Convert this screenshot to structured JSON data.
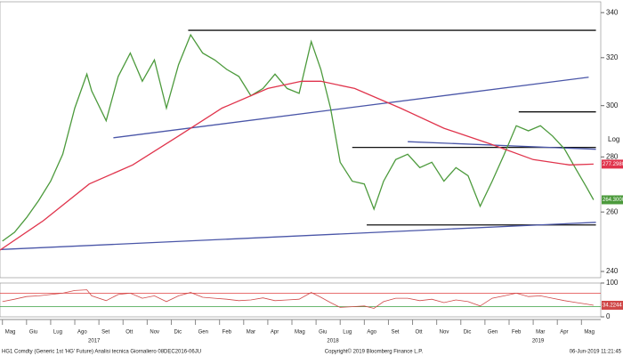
{
  "chart_data": [
    {
      "type": "line",
      "y_scale": "log",
      "y_axis_label": "Log",
      "xlim": [
        -0.1,
        24.8
      ],
      "ylim": [
        238,
        345
      ],
      "yticks": [
        240,
        260,
        280,
        300,
        320,
        340
      ],
      "xticks": [
        {
          "value": 0,
          "label": "Mag"
        },
        {
          "value": 1,
          "label": "Giu"
        },
        {
          "value": 2,
          "label": "Lug"
        },
        {
          "value": 3,
          "label": "Ago"
        },
        {
          "value": 4,
          "label": "Set"
        },
        {
          "value": 5,
          "label": "Ott"
        },
        {
          "value": 6,
          "label": "Nov"
        },
        {
          "value": 7,
          "label": "Dic"
        },
        {
          "value": 8,
          "label": "Gen"
        },
        {
          "value": 9,
          "label": "Feb"
        },
        {
          "value": 10,
          "label": "Mar"
        },
        {
          "value": 11,
          "label": "Apr"
        },
        {
          "value": 12,
          "label": "Mag"
        },
        {
          "value": 13,
          "label": "Giu"
        },
        {
          "value": 14,
          "label": "Lug"
        },
        {
          "value": 15,
          "label": "Ago"
        },
        {
          "value": 16,
          "label": "Set"
        },
        {
          "value": 17,
          "label": "Ott"
        },
        {
          "value": 18,
          "label": "Nov"
        },
        {
          "value": 19,
          "label": "Dic"
        },
        {
          "value": 20,
          "label": "Gen"
        },
        {
          "value": 21,
          "label": "Feb"
        },
        {
          "value": 22,
          "label": "Mar"
        },
        {
          "value": 23,
          "label": "Apr"
        },
        {
          "value": 24,
          "label": "Mag"
        }
      ],
      "year_labels": [
        {
          "value": 3.8,
          "label": "2017"
        },
        {
          "value": 13.7,
          "label": "2018"
        },
        {
          "value": 22.2,
          "label": "2019"
        }
      ],
      "series": [
        {
          "color": "#4c9a3c",
          "x": [
            0,
            0.5,
            1,
            1.5,
            2,
            2.5,
            3,
            3.5,
            3.7,
            4.3,
            4.8,
            5.3,
            5.8,
            6.3,
            6.8,
            7.3,
            7.8,
            8.3,
            8.8,
            9.3,
            9.8,
            10.3,
            10.8,
            11.3,
            11.8,
            12.3,
            12.8,
            13.2,
            13.6,
            14,
            14.5,
            15,
            15.4,
            15.8,
            16.3,
            16.8,
            17.3,
            17.8,
            18.3,
            18.8,
            19.3,
            19.8,
            20.3,
            20.8,
            21.3,
            21.8,
            22.3,
            22.8,
            23.3,
            23.8,
            24.2,
            24.5
          ],
          "values": [
            250,
            253,
            258,
            264,
            271,
            281,
            299,
            313,
            306,
            294,
            312,
            322,
            310,
            319,
            299,
            317,
            330,
            322,
            319,
            315,
            312,
            304,
            307,
            313,
            307,
            305,
            327,
            315,
            299,
            278,
            271,
            270,
            261,
            271,
            279,
            281,
            276,
            278,
            271,
            276,
            273,
            262,
            271,
            281,
            292,
            290,
            292,
            288,
            283,
            275,
            269,
            264.3
          ],
          "end_label": {
            "value": 264.3,
            "label": "264.3000"
          }
        },
        {
          "color": "#e0344c",
          "x": [
            -0.1,
            1.7,
            3.6,
            5.4,
            7.3,
            9.1,
            11.0,
            12.4,
            13.2,
            14.6,
            16.5,
            18.3,
            20.2,
            22.0,
            23.5,
            24.5
          ],
          "values": [
            247,
            257,
            270,
            277,
            288,
            299,
            307,
            310,
            310,
            307,
            299,
            291,
            285,
            279,
            277,
            277.298
          ],
          "end_label": {
            "value": 277.298,
            "label": "277.2980"
          }
        }
      ],
      "lines": [
        {
          "color": "#111111",
          "x": [
            7.7,
            24.6
          ],
          "values": [
            332,
            332
          ]
        },
        {
          "color": "#111111",
          "x": [
            14.5,
            24.6
          ],
          "values": [
            283.6,
            283.6
          ]
        },
        {
          "color": "#111111",
          "x": [
            21.4,
            24.6
          ],
          "values": [
            297.5,
            297.5
          ]
        },
        {
          "color": "#111111",
          "x": [
            15.1,
            24.6
          ],
          "values": [
            255.5,
            255.5
          ]
        },
        {
          "color": "#4a56a8",
          "x": [
            4.6,
            24.3
          ],
          "values": [
            287.3,
            311.7
          ]
        },
        {
          "color": "#4a56a8",
          "x": [
            -0.05,
            24.6
          ],
          "values": [
            247.2,
            256.4
          ]
        },
        {
          "color": "#4a56a8",
          "x": [
            16.8,
            24.6
          ],
          "values": [
            285.8,
            282.9
          ]
        }
      ]
    },
    {
      "type": "line",
      "xlim": [
        -0.1,
        24.8
      ],
      "ylim": [
        0,
        100
      ],
      "yticks": [
        0,
        100
      ],
      "ref_lines": [
        {
          "value": 70,
          "color": "#e04040"
        },
        {
          "value": 30,
          "color": "#3aa040"
        }
      ],
      "series": [
        {
          "color": "#d04848",
          "x": [
            0,
            0.5,
            1,
            1.5,
            2,
            2.5,
            3,
            3.5,
            3.7,
            4.3,
            4.8,
            5.3,
            5.8,
            6.3,
            6.8,
            7.3,
            7.8,
            8.3,
            8.8,
            9.3,
            9.8,
            10.3,
            10.8,
            11.3,
            11.8,
            12.3,
            12.8,
            13.2,
            13.6,
            14,
            14.5,
            15,
            15.4,
            15.8,
            16.3,
            16.8,
            17.3,
            17.8,
            18.3,
            18.8,
            19.3,
            19.8,
            20.3,
            20.8,
            21.3,
            21.8,
            22.3,
            22.8,
            23.3,
            23.8,
            24.2,
            24.5
          ],
          "values": [
            45,
            52,
            60,
            62,
            66,
            70,
            78,
            80,
            62,
            48,
            66,
            70,
            55,
            62,
            45,
            62,
            72,
            58,
            55,
            52,
            48,
            50,
            56,
            48,
            50,
            52,
            72,
            58,
            42,
            28,
            30,
            32,
            25,
            45,
            55,
            55,
            48,
            52,
            42,
            50,
            45,
            32,
            55,
            62,
            70,
            60,
            62,
            55,
            48,
            42,
            38,
            34.2244
          ],
          "end_label": {
            "value": 34.2244,
            "label": "34.2244"
          }
        }
      ]
    }
  ],
  "footer": {
    "left": "HG1 Comdty (Generic 1st 'HG' Future) Analisi tecnica  Giornaliero 08DEC2016-06JU",
    "center": "Copyright© 2019 Bloomberg Finance L.P.",
    "right": "06-Jun-2019 11:21:45"
  }
}
